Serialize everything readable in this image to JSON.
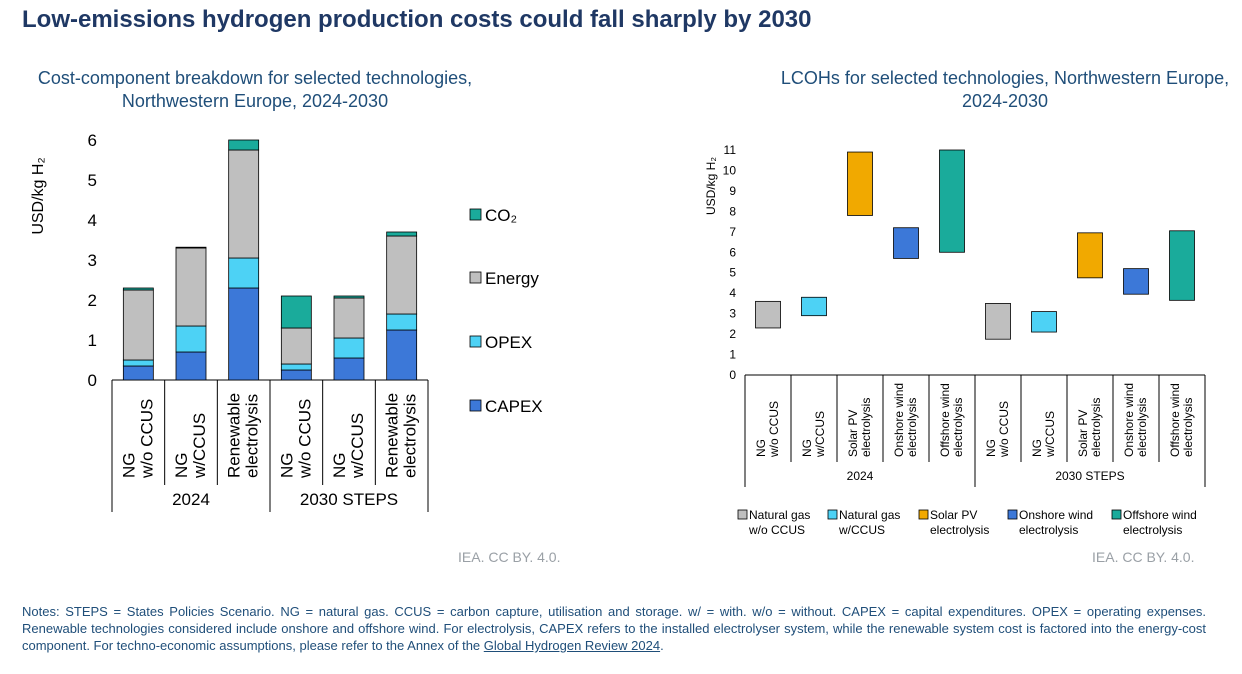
{
  "title": "Low-emissions hydrogen production costs could fall sharply by 2030",
  "charts": {
    "left_title": "Cost-component breakdown for selected technologies, Northwestern Europe, 2024-2030",
    "right_title": "LCOHs for selected technologies, Northwestern Europe, 2024-2030",
    "left_ylabel": "USD/kg H₂",
    "right_ylabel": "USD/kg H₂",
    "credit": "IEA. CC BY. 4.0."
  },
  "notes": {
    "text": "Notes: STEPS = States Policies Scenario. NG = natural gas. CCUS = carbon capture, utilisation and storage. w/ = with. w/o = without. CAPEX = capital expenditures. OPEX = operating expenses. Renewable technologies considered include onshore and offshore wind. For electrolysis, CAPEX refers to the installed electrolyser system, while the renewable system cost is factored into the energy-cost component. For techno-economic assumptions, please refer to the Annex of the ",
    "link": "Global Hydrogen Review 2024",
    "end": "."
  },
  "chart_data": [
    {
      "type": "bar",
      "stacked": true,
      "title": "Cost-component breakdown for selected technologies, Northwestern Europe, 2024-2030",
      "ylabel": "USD/kg H₂",
      "ylim": [
        0,
        6
      ],
      "yticks": [
        0,
        1,
        2,
        3,
        4,
        5,
        6
      ],
      "groups": [
        {
          "label": "2024",
          "categories": [
            [
              "NG",
              "w/o CCUS"
            ],
            [
              "NG",
              "w/CCUS"
            ],
            [
              "Renewable",
              "electrolysis"
            ]
          ]
        },
        {
          "label": "2030 STEPS",
          "categories": [
            [
              "NG",
              "w/o CCUS"
            ],
            [
              "NG",
              "w/CCUS"
            ],
            [
              "Renewable",
              "electrolysis"
            ]
          ]
        }
      ],
      "series": [
        {
          "name": "CAPEX",
          "color": "#3c78d8",
          "values": [
            0.35,
            0.7,
            2.3,
            0.25,
            0.55,
            1.25
          ]
        },
        {
          "name": "OPEX",
          "color": "#4dd2f5",
          "values": [
            0.15,
            0.65,
            0.75,
            0.15,
            0.5,
            0.4
          ]
        },
        {
          "name": "Energy",
          "color": "#bfbfbf",
          "values": [
            1.75,
            1.95,
            2.7,
            0.9,
            1.0,
            1.95
          ]
        },
        {
          "name": "CO₂",
          "color": "#1aab9b",
          "values": [
            0.05,
            0.02,
            0.25,
            0.8,
            0.05,
            0.1
          ]
        }
      ],
      "legend_order": [
        "CO₂",
        "Energy",
        "OPEX",
        "CAPEX"
      ],
      "legend_position": "right",
      "grid": false
    },
    {
      "type": "bar",
      "floating": true,
      "title": "LCOHs for selected technologies, Northwestern Europe, 2024-2030",
      "ylabel": "USD/kg H₂",
      "ylim": [
        0,
        11
      ],
      "yticks": [
        0,
        1,
        2,
        3,
        4,
        5,
        6,
        7,
        8,
        9,
        10,
        11
      ],
      "groups": [
        {
          "label": "2024",
          "categories": [
            [
              "NG",
              "w/o CCUS"
            ],
            [
              "NG",
              "w/CCUS"
            ],
            [
              "Solar PV",
              "electrolysis"
            ],
            [
              "Onshore wind",
              "electrolysis"
            ],
            [
              "Offshore wind",
              "electrolysis"
            ]
          ]
        },
        {
          "label": "2030 STEPS",
          "categories": [
            [
              "NG",
              "w/o CCUS"
            ],
            [
              "NG",
              "w/CCUS"
            ],
            [
              "Solar PV",
              "electrolysis"
            ],
            [
              "Onshore wind",
              "electrolysis"
            ],
            [
              "Offshore wind",
              "electrolysis"
            ]
          ]
        }
      ],
      "series": [
        {
          "name": "Natural gas w/o CCUS",
          "color": "#bfbfbf",
          "ranges": [
            [
              2.3,
              3.6
            ],
            [
              1.75,
              3.5
            ]
          ]
        },
        {
          "name": "Natural gas w/CCUS",
          "color": "#4dd2f5",
          "ranges": [
            [
              2.9,
              3.8
            ],
            [
              2.1,
              3.1
            ]
          ]
        },
        {
          "name": "Solar PV electrolysis",
          "color": "#f1a900",
          "ranges": [
            [
              7.8,
              10.9
            ],
            [
              4.75,
              6.95
            ]
          ]
        },
        {
          "name": "Onshore wind electrolysis",
          "color": "#3c78d8",
          "ranges": [
            [
              5.7,
              7.2
            ],
            [
              3.95,
              5.2
            ]
          ]
        },
        {
          "name": "Offshore wind electrolysis",
          "color": "#1aab9b",
          "ranges": [
            [
              6.0,
              11.0
            ],
            [
              3.65,
              7.05
            ]
          ]
        }
      ],
      "legend_labels": [
        [
          "Natural gas",
          "w/o CCUS"
        ],
        [
          "Natural gas",
          "w/CCUS"
        ],
        [
          "Solar PV",
          "electrolysis"
        ],
        [
          "Onshore wind",
          "electrolysis"
        ],
        [
          "Offshore wind",
          "electrolysis"
        ]
      ],
      "legend_position": "bottom",
      "grid": false
    }
  ]
}
